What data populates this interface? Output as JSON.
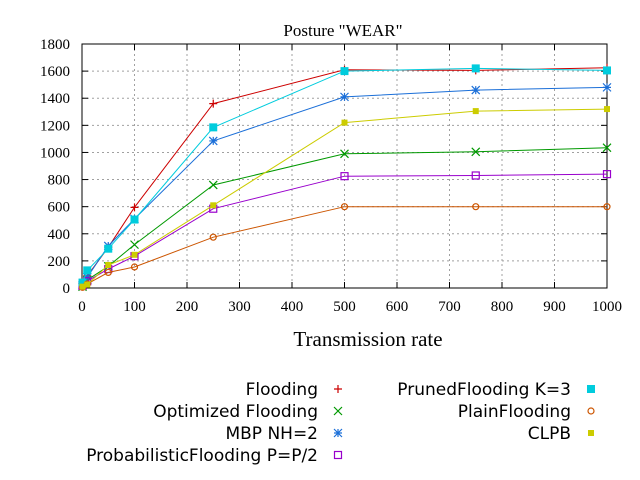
{
  "chart_data": {
    "type": "line",
    "title": "Posture \"WEAR\"",
    "xlabel": "Transmission rate",
    "ylabel": "",
    "xlim": [
      0,
      1000
    ],
    "ylim": [
      0,
      1800
    ],
    "xticks": [
      0,
      100,
      200,
      300,
      400,
      500,
      600,
      700,
      800,
      900,
      1000
    ],
    "yticks": [
      0,
      200,
      400,
      600,
      800,
      1000,
      1200,
      1400,
      1600,
      1800
    ],
    "grid": true,
    "legend_position": "bottom",
    "x": [
      1,
      10,
      50,
      100,
      250,
      500,
      750,
      1000
    ],
    "series": [
      {
        "name": "Flooding",
        "color": "#cc0000",
        "marker": "plus",
        "values": [
          30,
          90,
          300,
          595,
          1360,
          1610,
          1605,
          1625
        ]
      },
      {
        "name": "Optimized Flooding",
        "color": "#009900",
        "marker": "cross",
        "values": [
          10,
          60,
          160,
          320,
          760,
          990,
          1005,
          1035
        ]
      },
      {
        "name": "MBP NH=2",
        "color": "#1b6fd8",
        "marker": "star",
        "values": [
          20,
          80,
          310,
          510,
          1085,
          1410,
          1460,
          1480
        ]
      },
      {
        "name": "ProbabilisticFlooding P=P/2",
        "color": "#9900cc",
        "marker": "open-square",
        "values": [
          15,
          50,
          140,
          235,
          585,
          825,
          830,
          840
        ]
      },
      {
        "name": "PrunedFlooding K=3",
        "color": "#00ccdd",
        "marker": "filled-square",
        "values": [
          40,
          130,
          290,
          505,
          1185,
          1600,
          1620,
          1605
        ]
      },
      {
        "name": "PlainFlooding",
        "color": "#cc5500",
        "marker": "open-circle",
        "values": [
          5,
          30,
          115,
          155,
          375,
          600,
          600,
          600
        ]
      },
      {
        "name": "CLPB",
        "color": "#cccc00",
        "marker": "filled-square-small",
        "values": [
          10,
          25,
          170,
          245,
          610,
          1220,
          1305,
          1320
        ]
      }
    ]
  }
}
